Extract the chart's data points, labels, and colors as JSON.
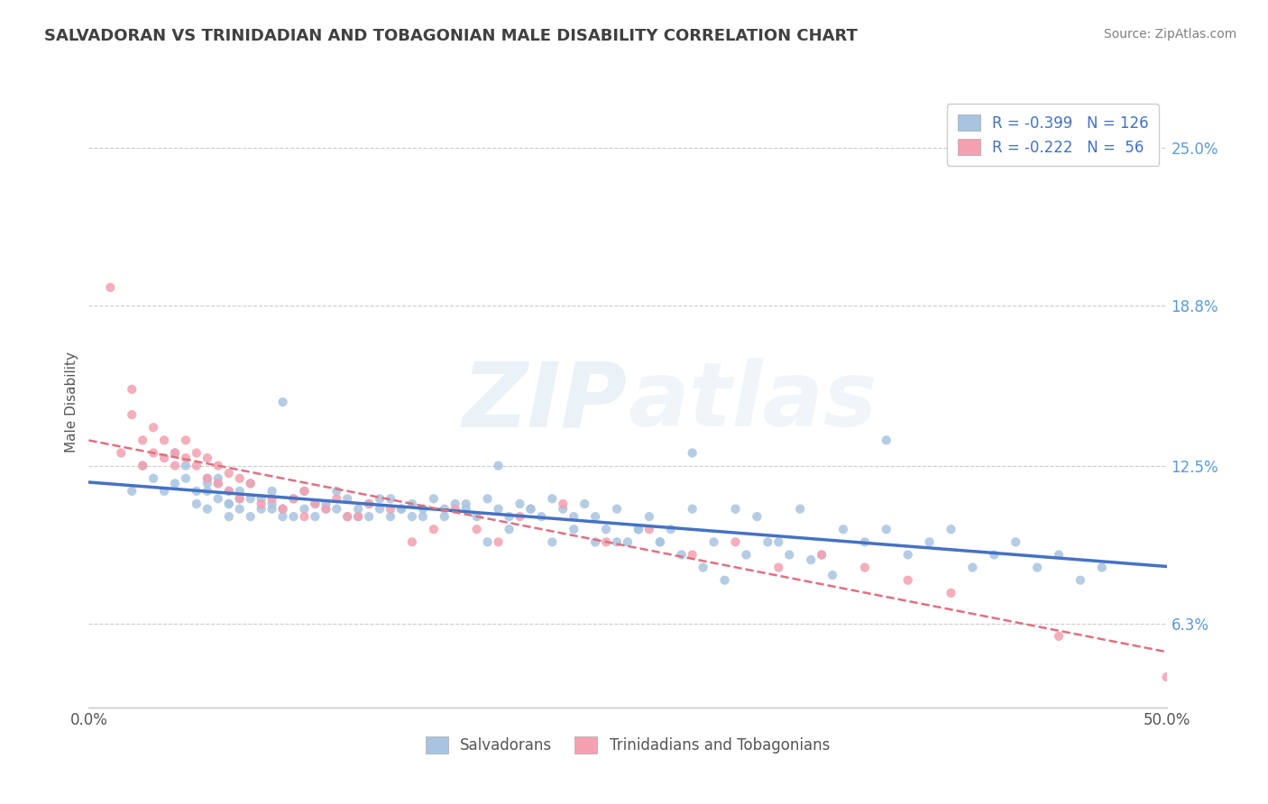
{
  "title": "SALVADORAN VS TRINIDADIAN AND TOBAGONIAN MALE DISABILITY CORRELATION CHART",
  "source": "Source: ZipAtlas.com",
  "ylabel": "Male Disability",
  "yaxis_labels": [
    "6.3%",
    "12.5%",
    "18.8%",
    "25.0%"
  ],
  "yaxis_values": [
    0.063,
    0.125,
    0.188,
    0.25
  ],
  "xmin": 0.0,
  "xmax": 0.5,
  "ymin": 0.03,
  "ymax": 0.27,
  "r_salvadoran": -0.399,
  "n_salvadoran": 126,
  "r_trinidadian": -0.222,
  "n_trinidadian": 56,
  "color_salvadoran": "#a8c4e0",
  "color_trinidadian": "#f4a0b0",
  "color_trendline_salvadoran": "#4472c4",
  "color_trendline_trinidadian": "#e07080",
  "watermark_zip": "ZIP",
  "watermark_atlas": "atlas",
  "background_color": "#ffffff",
  "grid_color": "#cccccc",
  "legend_label_salvadoran": "Salvadorans",
  "legend_label_trinidadian": "Trinidadians and Tobagonians",
  "title_color": "#404040",
  "source_color": "#808080",
  "yaxis_label_color": "#5b9bd5",
  "salvadoran_x": [
    0.02,
    0.025,
    0.03,
    0.035,
    0.04,
    0.04,
    0.045,
    0.045,
    0.05,
    0.05,
    0.055,
    0.055,
    0.055,
    0.06,
    0.06,
    0.06,
    0.065,
    0.065,
    0.065,
    0.07,
    0.07,
    0.07,
    0.075,
    0.075,
    0.08,
    0.08,
    0.085,
    0.085,
    0.09,
    0.09,
    0.095,
    0.1,
    0.1,
    0.105,
    0.11,
    0.11,
    0.115,
    0.12,
    0.12,
    0.125,
    0.13,
    0.13,
    0.135,
    0.14,
    0.14,
    0.145,
    0.15,
    0.15,
    0.155,
    0.16,
    0.165,
    0.17,
    0.175,
    0.18,
    0.185,
    0.19,
    0.195,
    0.2,
    0.205,
    0.21,
    0.215,
    0.22,
    0.225,
    0.23,
    0.235,
    0.24,
    0.245,
    0.25,
    0.255,
    0.26,
    0.265,
    0.27,
    0.28,
    0.29,
    0.3,
    0.31,
    0.32,
    0.33,
    0.34,
    0.35,
    0.36,
    0.37,
    0.38,
    0.39,
    0.4,
    0.41,
    0.42,
    0.43,
    0.44,
    0.45,
    0.46,
    0.47,
    0.37,
    0.28,
    0.19,
    0.09,
    0.055,
    0.065,
    0.075,
    0.085,
    0.095,
    0.105,
    0.115,
    0.125,
    0.135,
    0.145,
    0.155,
    0.165,
    0.175,
    0.185,
    0.195,
    0.205,
    0.215,
    0.225,
    0.235,
    0.245,
    0.255,
    0.265,
    0.275,
    0.285,
    0.295,
    0.305,
    0.315,
    0.325,
    0.335,
    0.345
  ],
  "salvadoran_y": [
    0.115,
    0.125,
    0.12,
    0.115,
    0.13,
    0.118,
    0.125,
    0.12,
    0.115,
    0.11,
    0.12,
    0.115,
    0.108,
    0.118,
    0.112,
    0.12,
    0.115,
    0.11,
    0.105,
    0.115,
    0.112,
    0.108,
    0.105,
    0.118,
    0.112,
    0.108,
    0.115,
    0.11,
    0.108,
    0.105,
    0.112,
    0.108,
    0.115,
    0.105,
    0.11,
    0.108,
    0.115,
    0.105,
    0.112,
    0.108,
    0.11,
    0.105,
    0.108,
    0.112,
    0.105,
    0.108,
    0.11,
    0.105,
    0.108,
    0.112,
    0.105,
    0.11,
    0.108,
    0.105,
    0.112,
    0.108,
    0.105,
    0.11,
    0.108,
    0.105,
    0.112,
    0.108,
    0.105,
    0.11,
    0.095,
    0.1,
    0.108,
    0.095,
    0.1,
    0.105,
    0.095,
    0.1,
    0.108,
    0.095,
    0.108,
    0.105,
    0.095,
    0.108,
    0.09,
    0.1,
    0.095,
    0.1,
    0.09,
    0.095,
    0.1,
    0.085,
    0.09,
    0.095,
    0.085,
    0.09,
    0.08,
    0.085,
    0.135,
    0.13,
    0.125,
    0.15,
    0.118,
    0.11,
    0.112,
    0.108,
    0.105,
    0.11,
    0.108,
    0.105,
    0.112,
    0.108,
    0.105,
    0.108,
    0.11,
    0.095,
    0.1,
    0.108,
    0.095,
    0.1,
    0.105,
    0.095,
    0.1,
    0.095,
    0.09,
    0.085,
    0.08,
    0.09,
    0.095,
    0.09,
    0.088,
    0.082
  ],
  "trinidadian_x": [
    0.01,
    0.015,
    0.02,
    0.02,
    0.025,
    0.025,
    0.03,
    0.03,
    0.035,
    0.035,
    0.04,
    0.04,
    0.045,
    0.045,
    0.05,
    0.05,
    0.055,
    0.055,
    0.06,
    0.06,
    0.065,
    0.065,
    0.07,
    0.07,
    0.075,
    0.08,
    0.085,
    0.09,
    0.095,
    0.1,
    0.1,
    0.105,
    0.11,
    0.115,
    0.12,
    0.125,
    0.13,
    0.14,
    0.15,
    0.16,
    0.17,
    0.18,
    0.19,
    0.2,
    0.22,
    0.24,
    0.26,
    0.28,
    0.3,
    0.32,
    0.34,
    0.36,
    0.38,
    0.4,
    0.45,
    0.5
  ],
  "trinidadian_y": [
    0.195,
    0.13,
    0.145,
    0.155,
    0.135,
    0.125,
    0.14,
    0.13,
    0.128,
    0.135,
    0.13,
    0.125,
    0.135,
    0.128,
    0.13,
    0.125,
    0.128,
    0.12,
    0.125,
    0.118,
    0.122,
    0.115,
    0.12,
    0.112,
    0.118,
    0.11,
    0.112,
    0.108,
    0.112,
    0.115,
    0.105,
    0.11,
    0.108,
    0.112,
    0.105,
    0.105,
    0.11,
    0.108,
    0.095,
    0.1,
    0.108,
    0.1,
    0.095,
    0.105,
    0.11,
    0.095,
    0.1,
    0.09,
    0.095,
    0.085,
    0.09,
    0.085,
    0.08,
    0.075,
    0.058,
    0.042
  ]
}
